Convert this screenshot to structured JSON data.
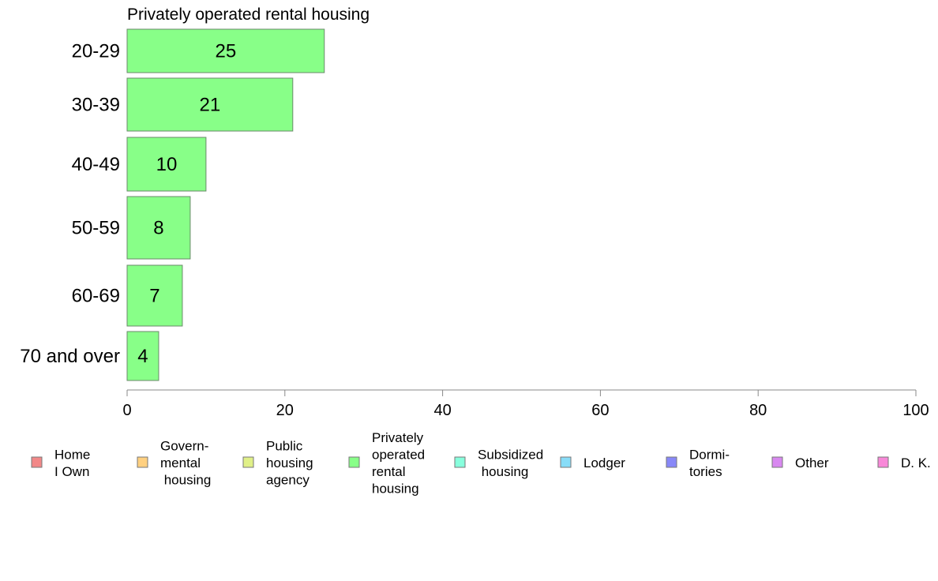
{
  "chart_data": {
    "type": "bar",
    "orientation": "horizontal",
    "title": "Privately operated rental housing",
    "categories": [
      "20-29",
      "30-39",
      "40-49",
      "50-59",
      "60-69",
      "70 and over"
    ],
    "values": [
      25,
      21,
      10,
      8,
      7,
      4
    ],
    "data_labels": [
      "25",
      "21",
      "10",
      "8",
      "7",
      "4"
    ],
    "xlim": [
      0,
      100
    ],
    "x_ticks": [
      0,
      20,
      40,
      60,
      80,
      100
    ],
    "x_tick_labels": [
      "0",
      "20",
      "40",
      "60",
      "80",
      "100"
    ],
    "bar_color": "#88ff88",
    "grid": false,
    "legend_position": "bottom",
    "legend": [
      {
        "label": "Home\nI Own",
        "color": "#f28888"
      },
      {
        "label": "Govern-\nmental\n housing",
        "color": "#ffd080"
      },
      {
        "label": "Public\nhousing\nagency",
        "color": "#e0f088"
      },
      {
        "label": "Privately\noperated\nrental\nhousing",
        "color": "#88ff88"
      },
      {
        "label": "Subsidized\n housing",
        "color": "#88ffdd"
      },
      {
        "label": "Lodger",
        "color": "#88ddf8"
      },
      {
        "label": "Dormi-\ntories",
        "color": "#8888f8"
      },
      {
        "label": "Other",
        "color": "#d888f0"
      },
      {
        "label": "D. K.",
        "color": "#f888d8"
      }
    ]
  }
}
